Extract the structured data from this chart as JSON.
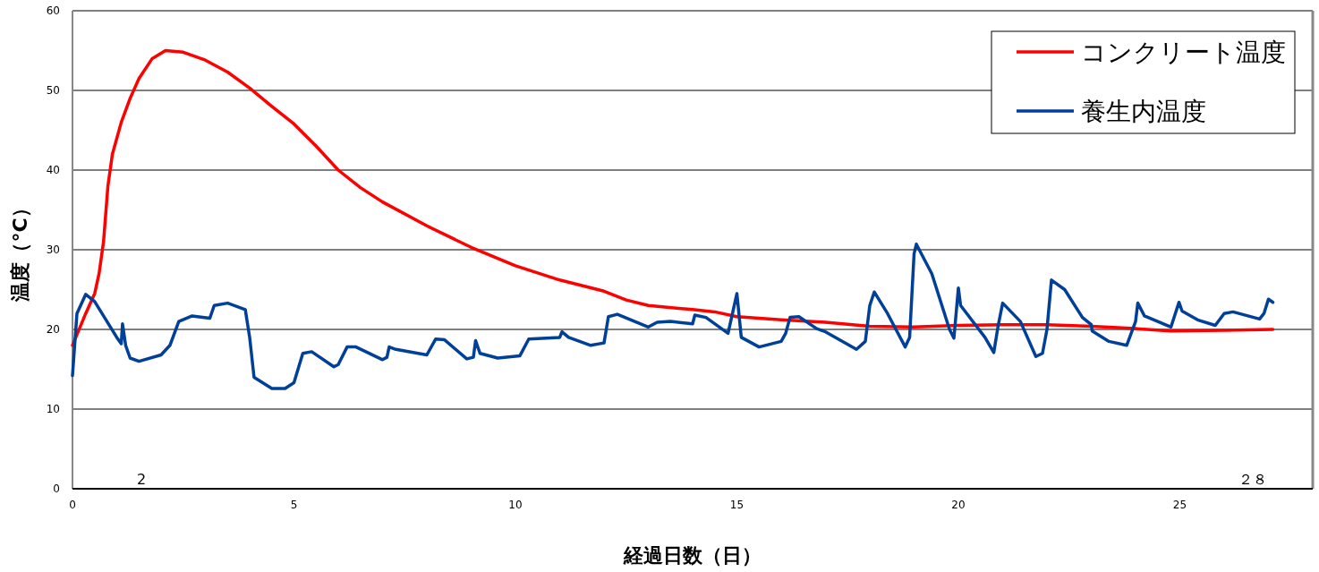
{
  "chart_data": {
    "type": "line",
    "xlabel": "経過日数（日）",
    "ylabel": "温度（°C）",
    "xlim": [
      0,
      28
    ],
    "xticks": [
      0,
      5,
      10,
      15,
      20,
      25
    ],
    "ylim": [
      0,
      60
    ],
    "yticks": [
      0,
      10,
      20,
      30,
      40,
      50,
      60
    ],
    "grid": "y",
    "legend": "top right",
    "line_style": "solid",
    "annotations": [
      "2",
      "２８"
    ],
    "series": [
      {
        "name": "コンクリート温度",
        "color": "#ff0000",
        "x": [
          0,
          0.3,
          0.5,
          0.6,
          0.7,
          0.8,
          0.9,
          1.1,
          1.3,
          1.5,
          1.8,
          2.1,
          2.5,
          3,
          3.5,
          4,
          4.5,
          5,
          5.5,
          6,
          6.5,
          7,
          8,
          9,
          10,
          11,
          12,
          12.5,
          13,
          14,
          14.5,
          15,
          16,
          17,
          18,
          19,
          20,
          21,
          22,
          23,
          24,
          24.8,
          26,
          27.1
        ],
        "values": [
          18,
          22,
          24.5,
          27,
          31,
          38,
          42,
          46,
          49,
          51.5,
          54,
          55,
          54.8,
          53.8,
          52.3,
          50.3,
          48,
          45.8,
          43,
          40,
          37.8,
          36,
          33,
          30.3,
          28,
          26.2,
          24.8,
          23.7,
          23,
          22.5,
          22.2,
          21.6,
          21.2,
          20.9,
          20.4,
          20.3,
          20.5,
          20.6,
          20.6,
          20.4,
          20.1,
          19.8,
          19.9,
          20
        ]
      },
      {
        "name": "養生内温度",
        "color": "#004098",
        "x": [
          0,
          0.1,
          0.3,
          0.5,
          1.0,
          1.1,
          1.13,
          1.2,
          1.3,
          1.5,
          2,
          2.2,
          2.4,
          2.7,
          3.1,
          3.2,
          3.5,
          3.9,
          4.0,
          4.1,
          4.5,
          4.8,
          5.0,
          5.2,
          5.4,
          5.9,
          6.0,
          6.2,
          6.4,
          7.0,
          7.1,
          7.15,
          7.3,
          8,
          8.2,
          8.4,
          8.9,
          9.05,
          9.1,
          9.2,
          9.6,
          10.1,
          10.3,
          11,
          11.05,
          11.2,
          11.7,
          12.0,
          12.1,
          12.3,
          13,
          13.2,
          13.5,
          14,
          14.05,
          14.3,
          14.8,
          15,
          15.1,
          15.5,
          16,
          16.1,
          16.2,
          16.4,
          16.8,
          17.0,
          17.7,
          17.9,
          18.0,
          18.1,
          18.4,
          18.8,
          18.9,
          19.0,
          19.05,
          19.4,
          19.8,
          19.9,
          20.0,
          20.05,
          20.6,
          20.8,
          20.9,
          21.0,
          21.4,
          21.75,
          21.9,
          22.0,
          22.1,
          22.4,
          22.8,
          23.0,
          23.02,
          23.4,
          23.8,
          24.0,
          24.05,
          24.2,
          24.8,
          24.98,
          25.05,
          25.4,
          25.8,
          26.0,
          26.2,
          26.8,
          26.9,
          27.0,
          27.1
        ],
        "values": [
          14.2,
          22,
          24.4,
          23.5,
          19,
          18.2,
          20.7,
          18,
          16.4,
          16,
          16.8,
          18,
          21,
          21.7,
          21.4,
          23,
          23.3,
          22.5,
          19,
          14,
          12.6,
          12.6,
          13.3,
          17,
          17.2,
          15.3,
          15.6,
          17.8,
          17.8,
          16.2,
          16.5,
          17.8,
          17.5,
          16.8,
          18.8,
          18.7,
          16.3,
          16.5,
          18.6,
          17,
          16.4,
          16.7,
          18.8,
          19,
          19.7,
          19,
          18,
          18.3,
          21.6,
          21.9,
          20.3,
          20.9,
          21,
          20.7,
          21.8,
          21.5,
          19.5,
          24.5,
          19,
          17.8,
          18.5,
          19.5,
          21.5,
          21.6,
          20.1,
          19.7,
          17.5,
          18.5,
          23,
          24.7,
          22,
          17.8,
          19,
          29.5,
          30.7,
          27,
          20,
          18.9,
          25.2,
          23,
          19,
          17.1,
          20.5,
          23.3,
          21,
          16.6,
          17,
          20,
          26.2,
          25,
          21.5,
          20.6,
          19.8,
          18.5,
          18.0,
          21,
          23.3,
          21.7,
          20.3,
          23.4,
          22.3,
          21.2,
          20.5,
          22,
          22.2,
          21.3,
          22,
          23.8,
          23.4
        ]
      }
    ]
  }
}
